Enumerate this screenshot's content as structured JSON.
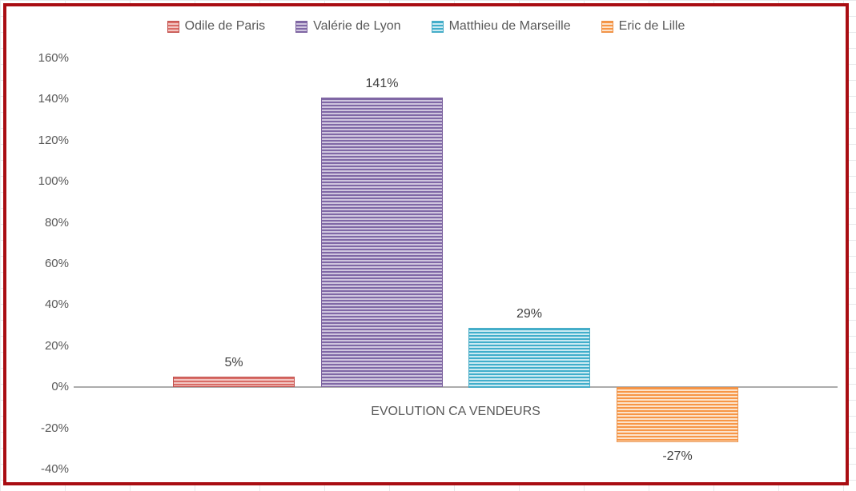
{
  "chart_data": {
    "type": "bar",
    "title": "",
    "xlabel": "EVOLUTION CA VENDEURS",
    "ylabel": "",
    "categories": [
      "EVOLUTION CA VENDEURS"
    ],
    "series": [
      {
        "name": "Odile de Paris",
        "values": [
          5
        ],
        "data_label": "5%",
        "color": "#c0504d",
        "stripe_dark": "#d96c66",
        "stripe_light": "#f2c6c3"
      },
      {
        "name": "Valérie de Lyon",
        "values": [
          141
        ],
        "data_label": "141%",
        "color": "#7d639f",
        "stripe_dark": "#8068a6",
        "stripe_light": "#cfc5de"
      },
      {
        "name": "Matthieu de Marseille",
        "values": [
          29
        ],
        "data_label": "29%",
        "color": "#4bacc6",
        "stripe_dark": "#41aecb",
        "stripe_light": "#cbeaf2"
      },
      {
        "name": "Eric de Lille",
        "values": [
          -27
        ],
        "data_label": "-27%",
        "color": "#ec9149",
        "stripe_dark": "#f79646",
        "stripe_light": "#fce3cb"
      }
    ],
    "ylim": [
      -40,
      160
    ],
    "y_tick_step": 20,
    "y_tick_labels": [
      "160%",
      "140%",
      "120%",
      "100%",
      "80%",
      "60%",
      "40%",
      "20%",
      "0%",
      "-20%",
      "-40%"
    ],
    "grid": false,
    "legend_position": "top",
    "pattern_fill": "light-horizontal",
    "axis_line_color": "#acacac",
    "frame_border_color": "#a90d12"
  }
}
